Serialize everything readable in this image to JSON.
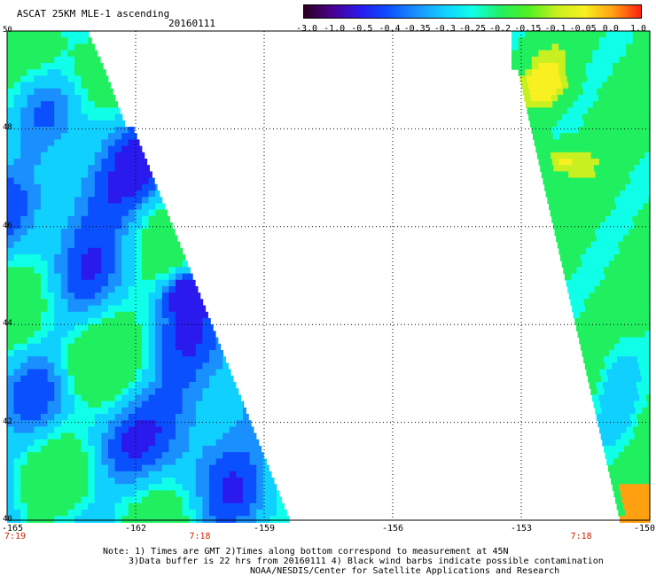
{
  "header": {
    "title": "ASCAT 25KM MLE-1 ascending",
    "date": "20160111"
  },
  "colorbar": {
    "tick_labels": [
      "-3.0",
      "-1.0",
      "-0.5",
      "-0.4",
      "-0.35",
      "-0.3",
      "-0.25",
      "-0.2",
      "-0.15",
      "-0.1",
      "-0.05",
      "0.0",
      "1.0"
    ],
    "colors": [
      "#2b0020",
      "#4a0090",
      "#2a1aee",
      "#0a50ff",
      "#1a90ff",
      "#10d0ff",
      "#10ffe8",
      "#20f060",
      "#50f020",
      "#c8f020",
      "#f8f020",
      "#ffa010",
      "#ff2010"
    ]
  },
  "map": {
    "lat_range": [
      40,
      50
    ],
    "lon_range": [
      -165,
      -150
    ],
    "lat_labels": [
      "50",
      "48",
      "46",
      "44",
      "42",
      "40"
    ],
    "lat_values": [
      50,
      48,
      46,
      44,
      42,
      40
    ],
    "lon_labels": [
      "-165",
      "-162",
      "-159",
      "-156",
      "-153",
      "-150"
    ],
    "lon_values": [
      -165,
      -162,
      -159,
      -156,
      -153,
      -150
    ],
    "time_labels": [
      {
        "text": "7:19",
        "lon": -165
      },
      {
        "text": "7:18",
        "lon": -160.5
      },
      {
        "text": "7:18",
        "lon": -151.6
      }
    ],
    "gridlines": "dotted"
  },
  "notes": {
    "line1": "Note: 1) Times are GMT 2)Times along bottom correspond to measurement at 45N",
    "line2": "3)Data buffer is 22 hrs from 20160111 4) Black wind barbs indicate possible contamination",
    "line3": "NOAA/NESDIS/Center for Satellite Applications and Research"
  }
}
